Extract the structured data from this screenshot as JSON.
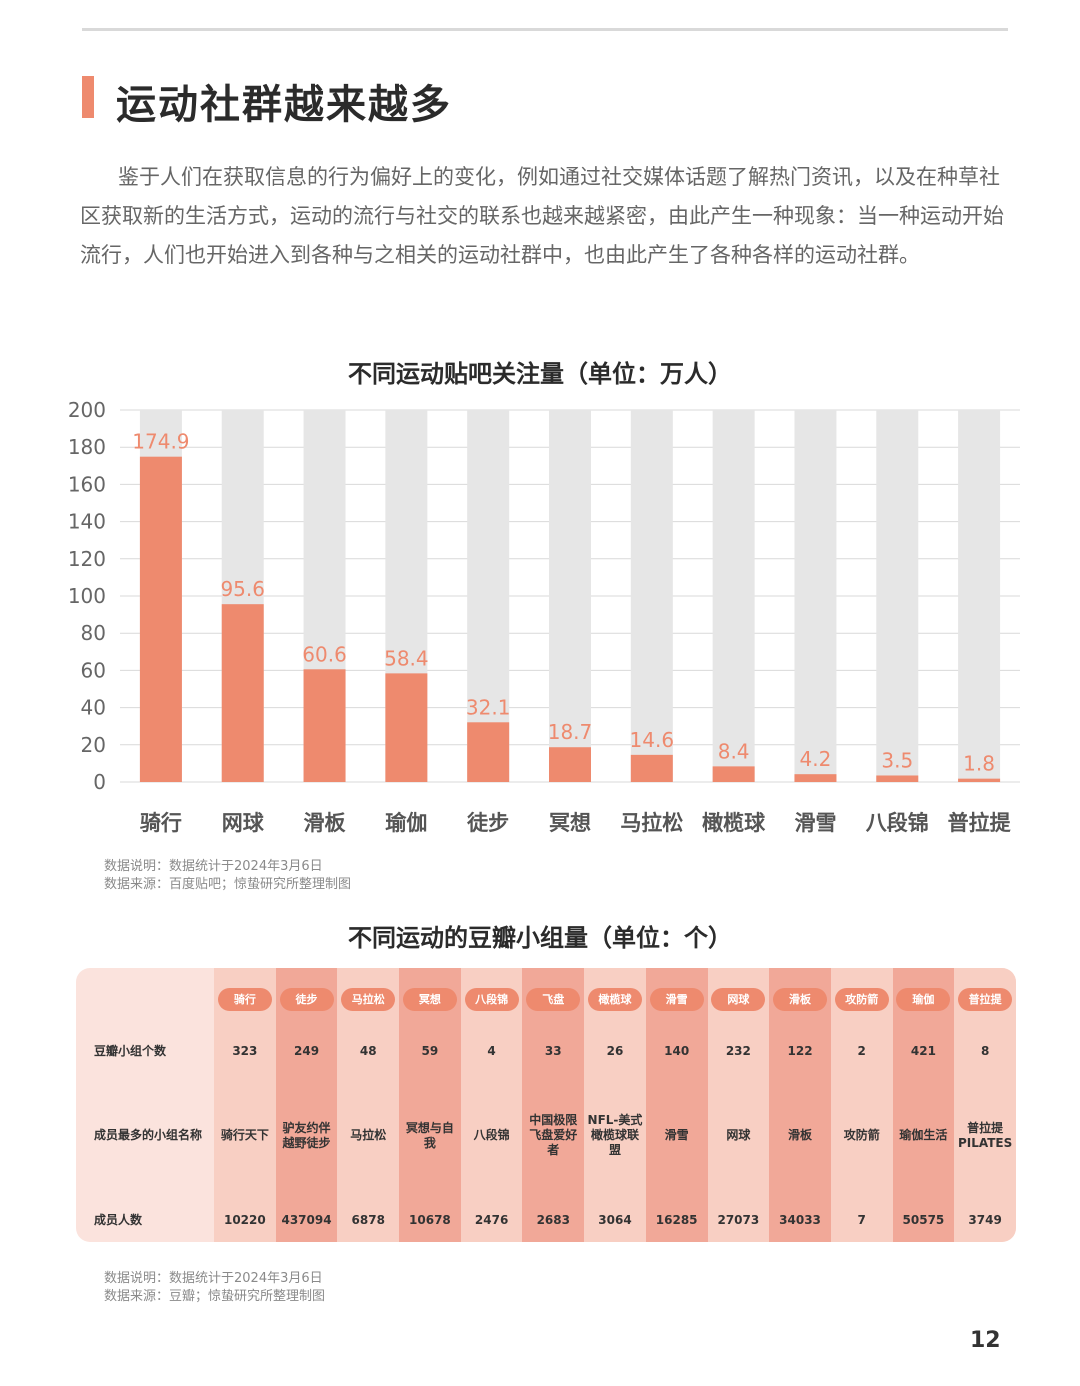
{
  "header": {
    "title": "运动社群越来越多",
    "intro": "鉴于人们在获取信息的行为偏好上的变化，例如通过社交媒体话题了解热门资讯，以及在种草社区获取新的生活方式，运动的流行与社交的联系也越来越紧密，由此产生一种现象：当一种运动开始流行，人们也开始进入到各种与之相关的运动社群中，也由此产生了各种各样的运动社群。"
  },
  "chart_data": {
    "type": "bar",
    "title": "不同运动贴吧关注量（单位：万人）",
    "categories": [
      "骑行",
      "网球",
      "滑板",
      "瑜伽",
      "徒步",
      "冥想",
      "马拉松",
      "橄榄球",
      "滑雪",
      "八段锦",
      "普拉提"
    ],
    "values": [
      174.9,
      95.6,
      60.6,
      58.4,
      32.1,
      18.7,
      14.6,
      8.4,
      4.2,
      3.5,
      1.8
    ],
    "value_labels": [
      "174.9",
      "95.6",
      "60.6",
      "58.4",
      "32.1",
      "18.7",
      "14.6",
      "8.4",
      "4.2",
      "3.5",
      "1.8"
    ],
    "yticks": [
      "0",
      "20",
      "40",
      "60",
      "80",
      "100",
      "120",
      "140",
      "160",
      "180",
      "200"
    ],
    "ylim": [
      0,
      200
    ],
    "xlabel": "",
    "ylabel": "",
    "grid": true,
    "colors": {
      "bar": "#ee8a6e",
      "background_bar": "#e6e6e6",
      "value_label": "#ee8a6e"
    }
  },
  "notes1": {
    "line1": "数据说明：数据统计于2024年3月6日",
    "line2": "数据来源：百度贴吧；惊蛰研究所整理制图"
  },
  "table": {
    "title": "不同运动的豆瓣小组量（单位：个）",
    "columns": [
      "骑行",
      "徒步",
      "马拉松",
      "冥想",
      "八段锦",
      "飞盘",
      "橄榄球",
      "滑雪",
      "网球",
      "滑板",
      "攻防箭",
      "瑜伽",
      "普拉提"
    ],
    "rows": [
      {
        "label": "豆瓣小组个数",
        "cells": [
          "323",
          "249",
          "48",
          "59",
          "4",
          "33",
          "26",
          "140",
          "232",
          "122",
          "2",
          "421",
          "8"
        ]
      },
      {
        "label": "成员最多的小组名称",
        "cells": [
          "骑行天下",
          "驴友约伴越野徒步",
          "马拉松",
          "冥想与自我",
          "八段锦",
          "中国极限飞盘爱好者",
          "NFL-美式橄榄球联盟",
          "滑雪",
          "网球",
          "滑板",
          "攻防箭",
          "瑜伽生活",
          "普拉提PILATES"
        ]
      },
      {
        "label": "成员人数",
        "cells": [
          "10220",
          "437094",
          "6878",
          "10678",
          "2476",
          "2683",
          "3064",
          "16285",
          "27073",
          "34033",
          "7",
          "50575",
          "3749"
        ]
      }
    ]
  },
  "notes2": {
    "line1": "数据说明：数据统计于2024年3月6日",
    "line2": "数据来源：豆瓣；惊蛰研究所整理制图"
  },
  "footer": {
    "page_number": "12"
  }
}
